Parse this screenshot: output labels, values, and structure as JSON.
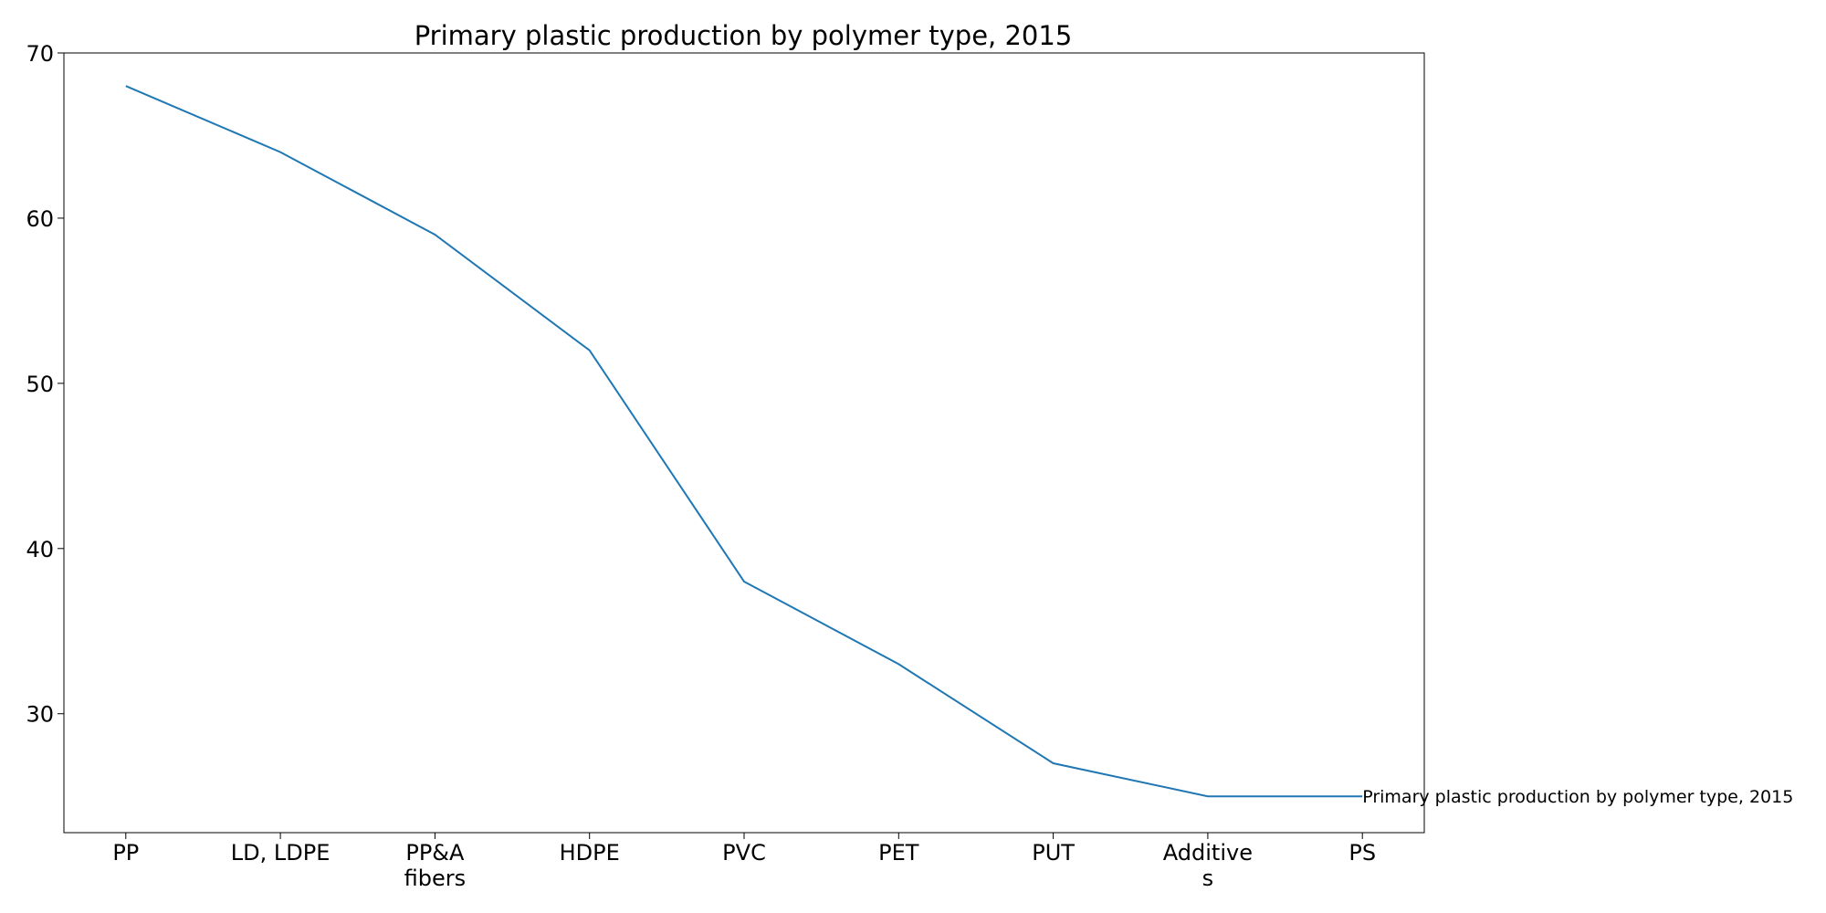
{
  "chart_data": {
    "type": "line",
    "title": "Primary plastic production by polymer type, 2015",
    "xlabel": "",
    "ylabel": "",
    "categories": [
      "PP",
      "LD, LDPE",
      "PP&A\nfibers",
      "HDPE",
      "PVC",
      "PET",
      "PUT",
      "Additive\ns",
      "PS"
    ],
    "series": [
      {
        "values": [
          68,
          64,
          59,
          52,
          38,
          33,
          27,
          25,
          25
        ],
        "color": "#1f77b4"
      }
    ],
    "ylim": [
      22.8,
      70
    ],
    "yticks": [
      30,
      40,
      50,
      60,
      70
    ],
    "grid": false,
    "legend": "none",
    "annotation": "Primary plastic production by polymer type, 2015"
  }
}
